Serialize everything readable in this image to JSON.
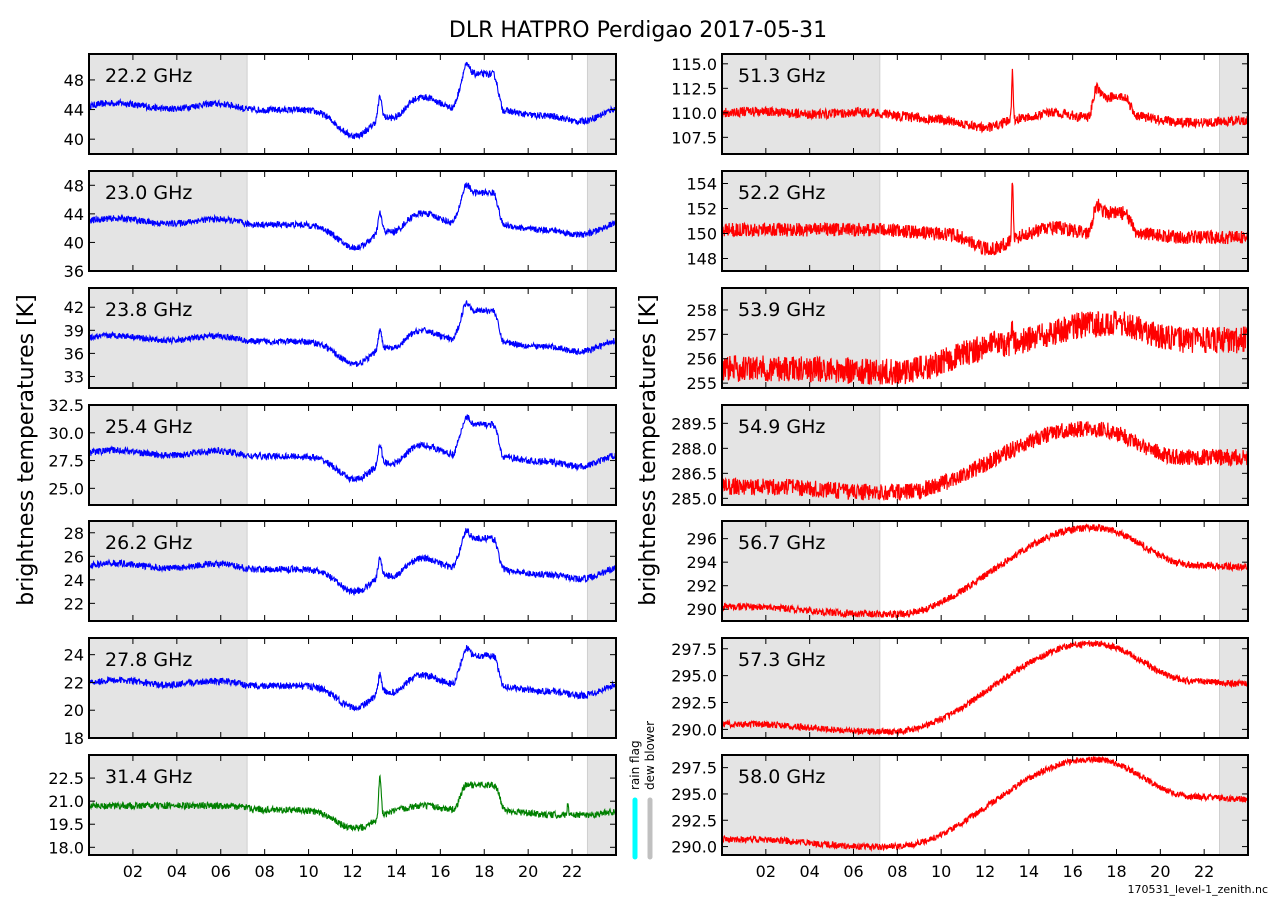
{
  "title": "DLR HATPRO  Perdigao  2017-05-31",
  "left_ylabel": "brightness temperatures [K]",
  "right_ylabel": "brightness temperatures [K]",
  "footer": "170531_level-1_zenith.nc",
  "flag_labels": {
    "rain": "rain flag",
    "dew": "dew blower"
  },
  "flag_colors": {
    "rain": "#00ffff",
    "dew": "#c0c0c0"
  },
  "x_tick_labels": [
    "02",
    "04",
    "06",
    "08",
    "10",
    "12",
    "14",
    "16",
    "18",
    "20",
    "22"
  ],
  "x_range_hours": [
    0,
    24
  ],
  "shaded_periods_hours": {
    "left": [
      [
        0,
        7.2
      ],
      [
        22.7,
        24
      ]
    ],
    "right": [
      [
        0,
        7.2
      ],
      [
        22.7,
        24
      ]
    ]
  },
  "shade_color": "#e4e4e4",
  "chart_data": [
    {
      "type": "line",
      "column": "left",
      "label": "22.2 GHz",
      "color": "#0000ff",
      "ylim": [
        38,
        51.5
      ],
      "yticks": [
        "40",
        "44",
        "48"
      ],
      "base": 44.5,
      "amp": 7.8,
      "noise": 0.45,
      "shape": "k"
    },
    {
      "type": "line",
      "column": "left",
      "label": "23.0 GHz",
      "color": "#0000ff",
      "ylim": [
        36,
        50
      ],
      "yticks": [
        "36",
        "40",
        "44",
        "48"
      ],
      "base": 43.0,
      "amp": 7.2,
      "noise": 0.45,
      "shape": "k"
    },
    {
      "type": "line",
      "column": "left",
      "label": "23.8 GHz",
      "color": "#0000ff",
      "ylim": [
        31.5,
        44.5
      ],
      "yticks": [
        "33",
        "36",
        "39",
        "42"
      ],
      "base": 38.0,
      "amp": 6.5,
      "noise": 0.4,
      "shape": "k"
    },
    {
      "type": "line",
      "column": "left",
      "label": "25.4 GHz",
      "color": "#0000ff",
      "ylim": [
        23.5,
        32.5
      ],
      "yticks": [
        "25.0",
        "27.5",
        "30.0",
        "32.5"
      ],
      "base": 28.2,
      "amp": 4.6,
      "noise": 0.3,
      "shape": "k"
    },
    {
      "type": "line",
      "column": "left",
      "label": "26.2 GHz",
      "color": "#0000ff",
      "ylim": [
        20.5,
        29
      ],
      "yticks": [
        "22",
        "24",
        "26",
        "28"
      ],
      "base": 25.2,
      "amp": 4.2,
      "noise": 0.28,
      "shape": "k"
    },
    {
      "type": "line",
      "column": "left",
      "label": "27.8 GHz",
      "color": "#0000ff",
      "ylim": [
        18,
        25.2
      ],
      "yticks": [
        "18",
        "20",
        "22",
        "24"
      ],
      "base": 22.0,
      "amp": 3.5,
      "noise": 0.24,
      "shape": "k"
    },
    {
      "type": "line",
      "column": "left",
      "label": "31.4 GHz",
      "color": "#008000",
      "ylim": [
        17.5,
        24
      ],
      "yticks": [
        "18.0",
        "19.5",
        "21.0",
        "22.5"
      ],
      "base": 20.7,
      "amp": 2.7,
      "noise": 0.22,
      "shape": "w"
    },
    {
      "type": "line",
      "column": "right",
      "label": "51.3 GHz",
      "color": "#ff0000",
      "ylim": [
        105.8,
        116
      ],
      "yticks": [
        "107.5",
        "110.0",
        "112.5",
        "115.0"
      ],
      "base": 110.0,
      "amp": 4.0,
      "noise": 0.5,
      "shape": "o1"
    },
    {
      "type": "line",
      "column": "right",
      "label": "52.2 GHz",
      "color": "#ff0000",
      "ylim": [
        147,
        155
      ],
      "yticks": [
        "148",
        "150",
        "152",
        "154"
      ],
      "base": 150.3,
      "amp": 3.0,
      "noise": 0.55,
      "shape": "o2"
    },
    {
      "type": "line",
      "column": "right",
      "label": "53.9 GHz",
      "color": "#ff0000",
      "ylim": [
        254.8,
        258.9
      ],
      "yticks": [
        "255",
        "256",
        "257",
        "258"
      ],
      "base": 255.6,
      "amp": 2.6,
      "noise": 0.55,
      "shape": "o3"
    },
    {
      "type": "line",
      "column": "right",
      "label": "54.9 GHz",
      "color": "#ff0000",
      "ylim": [
        284.6,
        290.6
      ],
      "yticks": [
        "285.0",
        "286.5",
        "288.0",
        "289.5"
      ],
      "base": 285.7,
      "amp": 4.2,
      "noise": 0.5,
      "shape": "o4"
    },
    {
      "type": "line",
      "column": "right",
      "label": "56.7 GHz",
      "color": "#ff0000",
      "ylim": [
        289,
        297.5
      ],
      "yticks": [
        "290",
        "292",
        "294",
        "296"
      ],
      "base": 290.2,
      "amp": 7.0,
      "noise": 0.3,
      "shape": "o5"
    },
    {
      "type": "line",
      "column": "right",
      "label": "57.3 GHz",
      "color": "#ff0000",
      "ylim": [
        289.2,
        298.5
      ],
      "yticks": [
        "290.0",
        "292.5",
        "295.0",
        "297.5"
      ],
      "base": 290.5,
      "amp": 7.8,
      "noise": 0.3,
      "shape": "o5"
    },
    {
      "type": "line",
      "column": "right",
      "label": "58.0 GHz",
      "color": "#ff0000",
      "ylim": [
        289.2,
        298.7
      ],
      "yticks": [
        "290.0",
        "292.5",
        "295.0",
        "297.5"
      ],
      "base": 290.7,
      "amp": 7.9,
      "noise": 0.3,
      "shape": "o5"
    }
  ]
}
